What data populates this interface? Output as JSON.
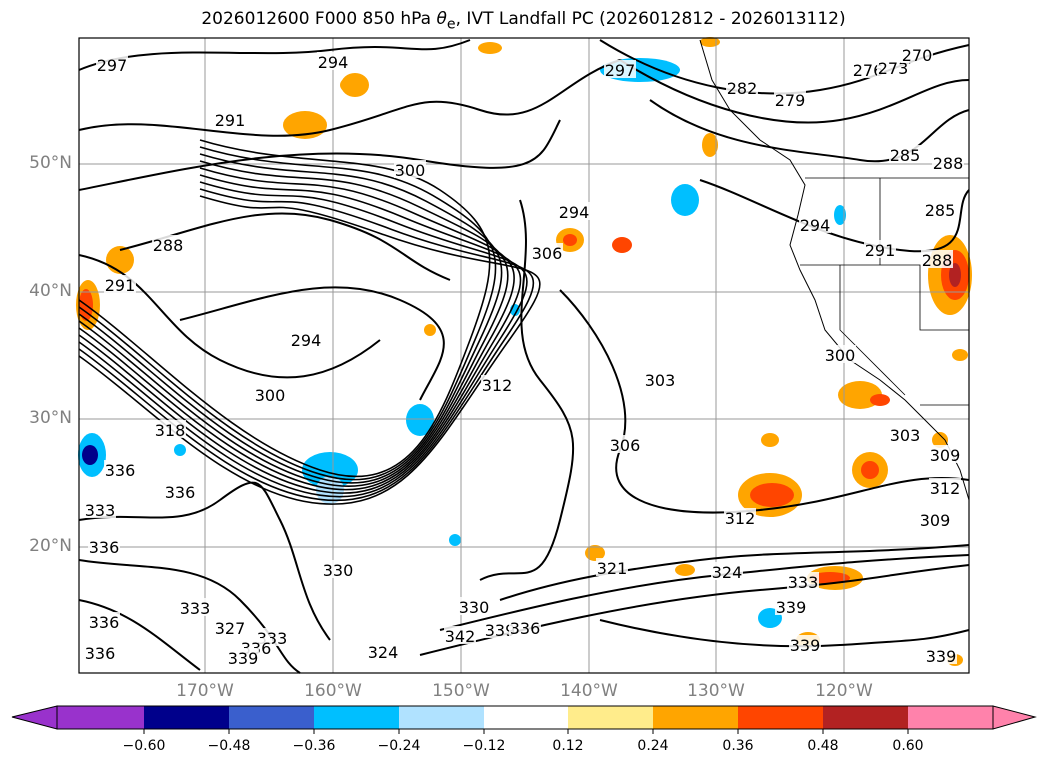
{
  "title": {
    "prefix": "2026012600 F000 850 hPa ",
    "theta": "θ",
    "sub": "e",
    "suffix": ", IVT Landfall PC (2026012812 - 2026013112)"
  },
  "lat_labels": [
    "50°N",
    "40°N",
    "30°N",
    "20°N"
  ],
  "lon_labels": [
    "170°W",
    "160°W",
    "150°W",
    "140°W",
    "130°W",
    "120°W"
  ],
  "extent": {
    "lon": [
      -180,
      -110
    ],
    "lat": [
      10,
      60
    ]
  },
  "contour_labels": [
    "297",
    "294",
    "291",
    "300",
    "288",
    "291",
    "294",
    "300",
    "318",
    "336",
    "336",
    "333",
    "336",
    "330",
    "333",
    "327",
    "333",
    "336",
    "339",
    "336",
    "336",
    "324",
    "342",
    "339",
    "336",
    "330",
    "321",
    "324",
    "333",
    "339",
    "339",
    "339",
    "312",
    "306",
    "303",
    "312",
    "306",
    "294",
    "297",
    "282",
    "279",
    "276",
    "273",
    "270",
    "285",
    "288",
    "285",
    "294",
    "291",
    "288",
    "300",
    "303",
    "309",
    "312",
    "309"
  ],
  "colorbar": {
    "ticks": [
      "−0.60",
      "−0.48",
      "−0.36",
      "−0.24",
      "−0.12",
      "0.12",
      "0.24",
      "0.36",
      "0.48",
      "0.60"
    ],
    "colors": [
      "#9932CC",
      "#00008B",
      "#3A5FCD",
      "#00BFFF",
      "#B0E2FF",
      "#FFFFFF",
      "#FFEC8B",
      "#FFA500",
      "#FF4500",
      "#B22222",
      "#FF82AB"
    ]
  }
}
